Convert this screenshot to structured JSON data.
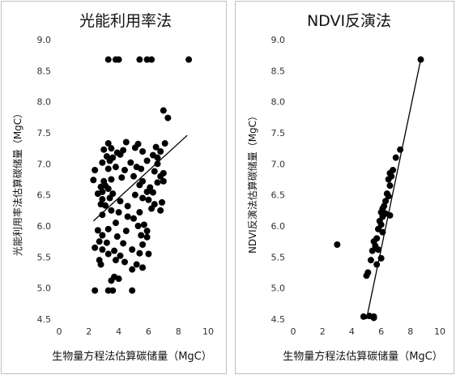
{
  "chart_data": [
    {
      "type": "scatter",
      "title": "光能利用率法",
      "xlabel": "生物量方程法估算碳储量（MgC）",
      "ylabel": "光能利用率法估算碳储量（MgC）",
      "xlim": [
        0,
        10
      ],
      "ylim": [
        4.5,
        9.0
      ],
      "x_ticks": [
        "0",
        "2",
        "4",
        "6",
        "8",
        "10"
      ],
      "y_ticks": [
        "4.5",
        "5.0",
        "5.5",
        "6.0",
        "6.5",
        "7.0",
        "7.5",
        "8.0",
        "8.5",
        "9.0"
      ],
      "grid": false,
      "legend": "none",
      "marker_color": "#000000",
      "trendline": {
        "x": [
          2.3,
          8.6
        ],
        "y": [
          6.08,
          7.46
        ]
      },
      "points": [
        [
          3.3,
          8.68
        ],
        [
          3.8,
          8.68
        ],
        [
          4.0,
          8.68
        ],
        [
          5.4,
          8.68
        ],
        [
          5.9,
          8.68
        ],
        [
          6.2,
          8.68
        ],
        [
          8.7,
          8.68
        ],
        [
          7.0,
          7.86
        ],
        [
          7.3,
          7.74
        ],
        [
          3.3,
          7.33
        ],
        [
          4.5,
          7.35
        ],
        [
          5.3,
          7.32
        ],
        [
          7.1,
          7.33
        ],
        [
          3.0,
          7.23
        ],
        [
          3.5,
          7.25
        ],
        [
          3.9,
          7.18
        ],
        [
          4.3,
          7.22
        ],
        [
          5.1,
          7.26
        ],
        [
          5.6,
          7.2
        ],
        [
          6.5,
          7.27
        ],
        [
          6.8,
          7.2
        ],
        [
          3.2,
          7.12
        ],
        [
          3.6,
          7.1
        ],
        [
          4.1,
          7.15
        ],
        [
          6.3,
          7.14
        ],
        [
          6.6,
          7.1
        ],
        [
          2.9,
          7.02
        ],
        [
          3.4,
          7.05
        ],
        [
          4.8,
          7.02
        ],
        [
          5.9,
          7.05
        ],
        [
          6.6,
          7.0
        ],
        [
          2.4,
          6.9
        ],
        [
          3.3,
          6.92
        ],
        [
          3.8,
          6.95
        ],
        [
          4.4,
          6.9
        ],
        [
          5.2,
          6.95
        ],
        [
          5.5,
          6.92
        ],
        [
          6.4,
          6.88
        ],
        [
          7.0,
          6.85
        ],
        [
          2.3,
          6.74
        ],
        [
          3.0,
          6.72
        ],
        [
          3.5,
          6.75
        ],
        [
          4.2,
          6.78
        ],
        [
          5.0,
          6.8
        ],
        [
          5.6,
          6.72
        ],
        [
          6.8,
          6.8
        ],
        [
          7.0,
          6.72
        ],
        [
          2.8,
          6.63
        ],
        [
          3.1,
          6.65
        ],
        [
          3.3,
          6.6
        ],
        [
          5.4,
          6.66
        ],
        [
          6.1,
          6.62
        ],
        [
          6.6,
          6.7
        ],
        [
          2.6,
          6.52
        ],
        [
          2.9,
          6.55
        ],
        [
          3.6,
          6.52
        ],
        [
          5.1,
          6.5
        ],
        [
          5.9,
          6.55
        ],
        [
          6.3,
          6.54
        ],
        [
          2.9,
          6.43
        ],
        [
          3.4,
          6.45
        ],
        [
          4.1,
          6.4
        ],
        [
          5.6,
          6.45
        ],
        [
          6.0,
          6.42
        ],
        [
          2.8,
          6.35
        ],
        [
          3.1,
          6.33
        ],
        [
          4.6,
          6.32
        ],
        [
          6.4,
          6.35
        ],
        [
          6.9,
          6.38
        ],
        [
          3.5,
          6.25
        ],
        [
          4.0,
          6.22
        ],
        [
          5.4,
          6.22
        ],
        [
          6.2,
          6.28
        ],
        [
          6.8,
          6.25
        ],
        [
          2.9,
          6.18
        ],
        [
          4.6,
          6.15
        ],
        [
          5.0,
          6.12
        ],
        [
          3.8,
          6.05
        ],
        [
          5.3,
          6.0
        ],
        [
          5.7,
          6.02
        ],
        [
          2.6,
          5.93
        ],
        [
          3.3,
          5.95
        ],
        [
          4.5,
          5.92
        ],
        [
          5.9,
          5.92
        ],
        [
          2.9,
          5.85
        ],
        [
          3.9,
          5.83
        ],
        [
          5.5,
          5.85
        ],
        [
          5.9,
          5.82
        ],
        [
          2.7,
          5.75
        ],
        [
          3.2,
          5.73
        ],
        [
          4.3,
          5.72
        ],
        [
          5.6,
          5.7
        ],
        [
          2.4,
          5.65
        ],
        [
          2.9,
          5.62
        ],
        [
          3.7,
          5.6
        ],
        [
          4.9,
          5.62
        ],
        [
          3.3,
          5.55
        ],
        [
          4.1,
          5.52
        ],
        [
          5.4,
          5.56
        ],
        [
          6.0,
          5.55
        ],
        [
          2.7,
          5.45
        ],
        [
          3.8,
          5.45
        ],
        [
          4.4,
          5.42
        ],
        [
          5.2,
          5.38
        ],
        [
          2.8,
          5.38
        ],
        [
          4.9,
          5.3
        ],
        [
          5.6,
          5.33
        ],
        [
          3.7,
          5.18
        ],
        [
          4.0,
          5.15
        ],
        [
          3.5,
          5.12
        ],
        [
          2.4,
          4.96
        ],
        [
          3.3,
          4.96
        ],
        [
          3.6,
          4.96
        ],
        [
          4.9,
          4.96
        ]
      ]
    },
    {
      "type": "scatter",
      "title": "NDVI反演法",
      "xlabel": "生物量方程法估算碳储量（MgC）",
      "ylabel": "NDVI反演法估算碳储量（MgC）",
      "xlim": [
        0,
        10
      ],
      "ylim": [
        4.5,
        9.0
      ],
      "x_ticks": [
        "0",
        "2",
        "4",
        "6",
        "8",
        "10"
      ],
      "y_ticks": [
        "4.5",
        "5.0",
        "5.5",
        "6.0",
        "6.5",
        "7.0",
        "7.5",
        "8.0",
        "8.5",
        "9.0"
      ],
      "grid": false,
      "legend": "none",
      "marker_color": "#000000",
      "trendline": {
        "x": [
          5.0,
          8.7
        ],
        "y": [
          4.5,
          8.68
        ]
      },
      "points": [
        [
          8.7,
          8.68
        ],
        [
          7.3,
          7.23
        ],
        [
          7.0,
          7.1
        ],
        [
          6.8,
          6.9
        ],
        [
          6.6,
          6.85
        ],
        [
          6.7,
          6.8
        ],
        [
          6.5,
          6.75
        ],
        [
          6.6,
          6.65
        ],
        [
          6.4,
          6.52
        ],
        [
          6.5,
          6.48
        ],
        [
          6.3,
          6.4
        ],
        [
          6.2,
          6.32
        ],
        [
          6.1,
          6.28
        ],
        [
          6.0,
          6.22
        ],
        [
          6.3,
          6.2
        ],
        [
          6.6,
          6.17
        ],
        [
          6.1,
          6.15
        ],
        [
          5.9,
          6.08
        ],
        [
          6.0,
          6.02
        ],
        [
          5.8,
          5.95
        ],
        [
          6.1,
          5.9
        ],
        [
          5.7,
          5.8
        ],
        [
          5.5,
          5.75
        ],
        [
          5.6,
          5.68
        ],
        [
          5.4,
          5.6
        ],
        [
          5.8,
          5.62
        ],
        [
          5.3,
          5.45
        ],
        [
          6.0,
          5.48
        ],
        [
          5.7,
          5.38
        ],
        [
          5.1,
          5.25
        ],
        [
          5.0,
          5.2
        ],
        [
          3.0,
          5.7
        ],
        [
          4.8,
          4.54
        ],
        [
          5.2,
          4.55
        ],
        [
          5.5,
          4.54
        ],
        [
          5.5,
          4.52
        ]
      ]
    }
  ]
}
